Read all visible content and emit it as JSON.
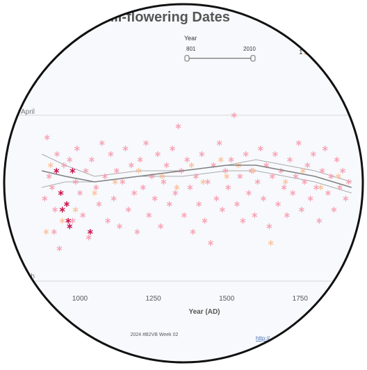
{
  "title": "ull-flowering Dates",
  "year_filter": {
    "label": "Year",
    "min": "801",
    "max": "2010"
  },
  "legend_fragment": "1",
  "footer": {
    "credit": "2024 #B2VB Week 02",
    "link_fragment": "http://"
  },
  "colors": {
    "background": "#f7f9fc",
    "pink": "#f7a3b5",
    "peach": "#f9c3a0",
    "crimson": "#c8104a",
    "trend": "#808080",
    "ci": "#aaaaaa",
    "gridline": "#d8d8d8"
  },
  "chart_data": {
    "type": "scatter",
    "xlabel": "Year (AD)",
    "ylabel": "",
    "xlim": [
      870,
      1925
    ],
    "x_ticks": [
      1000,
      1250,
      1500,
      1750
    ],
    "y_axis": {
      "type": "date",
      "range": [
        "Mar 28",
        "Apr 29"
      ],
      "labels": [
        "April",
        "rch"
      ],
      "label_dates": [
        "Apr 1",
        "Mar 31"
      ]
    },
    "marker": "asterisk",
    "series": [
      {
        "color_key": "pink",
        "points": [
          [
            880,
            "Apr 16"
          ],
          [
            888,
            "Apr 5"
          ],
          [
            895,
            "Apr 12"
          ],
          [
            905,
            "Apr 14"
          ],
          [
            912,
            "Apr 22"
          ],
          [
            915,
            "Apr 18"
          ],
          [
            922,
            "Apr 8"
          ],
          [
            930,
            "Apr 25"
          ],
          [
            945,
            "Apr 10"
          ],
          [
            955,
            "Apr 17"
          ],
          [
            965,
            "Apr 9"
          ],
          [
            975,
            "Apr 20"
          ],
          [
            985,
            "Apr 13"
          ],
          [
            990,
            "Apr 7"
          ],
          [
            1000,
            "Apr 15"
          ],
          [
            1010,
            "Apr 19"
          ],
          [
            1020,
            "Apr 11"
          ],
          [
            1030,
            "Apr 23"
          ],
          [
            1040,
            "Apr 9"
          ],
          [
            1055,
            "Apr 14"
          ],
          [
            1065,
            "Apr 17"
          ],
          [
            1075,
            "Apr 6"
          ],
          [
            1085,
            "Apr 12"
          ],
          [
            1095,
            "Apr 20"
          ],
          [
            1105,
            "Apr 8"
          ],
          [
            1115,
            "Apr 16"
          ],
          [
            1125,
            "Apr 11"
          ],
          [
            1135,
            "Apr 21"
          ],
          [
            1145,
            "Apr 13"
          ],
          [
            1155,
            "Apr 7"
          ],
          [
            1165,
            "Apr 18"
          ],
          [
            1175,
            "Apr 10"
          ],
          [
            1185,
            "Apr 15"
          ],
          [
            1195,
            "Apr 22"
          ],
          [
            1205,
            "Apr 9"
          ],
          [
            1215,
            "Apr 14"
          ],
          [
            1225,
            "Apr 6"
          ],
          [
            1235,
            "Apr 19"
          ],
          [
            1245,
            "Apr 12"
          ],
          [
            1255,
            "Apr 16"
          ],
          [
            1265,
            "Apr 8"
          ],
          [
            1275,
            "Apr 21"
          ],
          [
            1285,
            "Apr 13"
          ],
          [
            1295,
            "Apr 10"
          ],
          [
            1305,
            "Apr 17"
          ],
          [
            1315,
            "Apr 7"
          ],
          [
            1325,
            "Apr 15"
          ],
          [
            1335,
            "Apr 3"
          ],
          [
            1345,
            "Apr 11"
          ],
          [
            1355,
            "Apr 19"
          ],
          [
            1365,
            "Apr 9"
          ],
          [
            1375,
            "Apr 14"
          ],
          [
            1385,
            "Apr 22"
          ],
          [
            1395,
            "Apr 12"
          ],
          [
            1405,
            "Apr 17"
          ],
          [
            1415,
            "Apr 8"
          ],
          [
            1425,
            "Apr 20"
          ],
          [
            1435,
            "Apr 13"
          ],
          [
            1445,
            "Apr 24"
          ],
          [
            1455,
            "Apr 10"
          ],
          [
            1465,
            "Apr 16"
          ],
          [
            1475,
            "Apr 6"
          ],
          [
            1485,
            "Apr 18"
          ],
          [
            1495,
            "Apr 11"
          ],
          [
            1505,
            "Apr 14"
          ],
          [
            1515,
            "Apr 9"
          ],
          [
            1525,
            "Apr 1"
          ],
          [
            1535,
            "Apr 17"
          ],
          [
            1545,
            "Apr 12"
          ],
          [
            1555,
            "Apr 20"
          ],
          [
            1565,
            "Apr 8"
          ],
          [
            1575,
            "Apr 15"
          ],
          [
            1585,
            "Apr 11"
          ],
          [
            1595,
            "Apr 19"
          ],
          [
            1605,
            "Apr 13"
          ],
          [
            1615,
            "Apr 7"
          ],
          [
            1625,
            "Apr 16"
          ],
          [
            1635,
            "Apr 10"
          ],
          [
            1645,
            "Apr 21"
          ],
          [
            1655,
            "Apr 12"
          ],
          [
            1665,
            "Apr 8"
          ],
          [
            1675,
            "Apr 17"
          ],
          [
            1685,
            "Apr 11"
          ],
          [
            1695,
            "Apr 14"
          ],
          [
            1705,
            "Apr 19"
          ],
          [
            1715,
            "Apr 9"
          ],
          [
            1725,
            "Apr 15"
          ],
          [
            1735,
            "Apr 12"
          ],
          [
            1745,
            "Apr 6"
          ],
          [
            1755,
            "Apr 18"
          ],
          [
            1765,
            "Apr 13"
          ],
          [
            1775,
            "Apr 10"
          ],
          [
            1785,
            "Apr 16"
          ],
          [
            1795,
            "Apr 8"
          ],
          [
            1805,
            "Apr 14"
          ],
          [
            1815,
            "Apr 20"
          ],
          [
            1825,
            "Apr 11"
          ],
          [
            1835,
            "Apr 7"
          ],
          [
            1845,
            "Apr 15"
          ],
          [
            1855,
            "Apr 12"
          ],
          [
            1865,
            "Apr 18"
          ],
          [
            1875,
            "Apr 9"
          ],
          [
            1885,
            "Apr 14"
          ],
          [
            1895,
            "Apr 11"
          ],
          [
            1905,
            "Apr 16"
          ],
          [
            1915,
            "Apr 13"
          ]
        ]
      },
      {
        "color_key": "peach",
        "points": [
          [
            885,
            "Apr 22"
          ],
          [
            900,
            "Apr 10"
          ],
          [
            940,
            "Apr 20"
          ],
          [
            985,
            "Apr 18"
          ],
          [
            1050,
            "Apr 15"
          ],
          [
            1120,
            "Apr 13"
          ],
          [
            1200,
            "Apr 11"
          ],
          [
            1280,
            "Apr 12"
          ],
          [
            1330,
            "Apr 14"
          ],
          [
            1380,
            "Apr 10"
          ],
          [
            1420,
            "Apr 13"
          ],
          [
            1480,
            "Apr 9"
          ],
          [
            1500,
            "Apr 12"
          ],
          [
            1540,
            "Apr 10"
          ],
          [
            1590,
            "Apr 11"
          ],
          [
            1650,
            "Apr 24"
          ],
          [
            1700,
            "Apr 13"
          ],
          [
            1760,
            "Apr 11"
          ],
          [
            1820,
            "Apr 14"
          ],
          [
            1880,
            "Apr 12"
          ]
        ]
      },
      {
        "color_key": "crimson",
        "points": [
          [
            920,
            "Apr 11"
          ],
          [
            935,
            "Apr 15"
          ],
          [
            940,
            "Apr 18"
          ],
          [
            955,
            "Apr 17"
          ],
          [
            960,
            "Apr 20"
          ],
          [
            965,
            "Apr 21"
          ],
          [
            975,
            "Apr 11"
          ],
          [
            1035,
            "Apr 22"
          ]
        ]
      }
    ],
    "trend": {
      "color_key": "trend",
      "points": [
        [
          870,
          "Apr 11"
        ],
        [
          950,
          "Apr 12"
        ],
        [
          1050,
          "Apr 13"
        ],
        [
          1200,
          "Apr 12"
        ],
        [
          1350,
          "Apr 11"
        ],
        [
          1500,
          "Apr 10"
        ],
        [
          1600,
          "Apr 10"
        ],
        [
          1700,
          "Apr 11"
        ],
        [
          1800,
          "Apr 12"
        ],
        [
          1925,
          "Apr 14"
        ]
      ],
      "upper": [
        [
          870,
          "Apr 8"
        ],
        [
          950,
          "Apr 10"
        ],
        [
          1050,
          "Apr 12"
        ],
        [
          1200,
          "Apr 11"
        ],
        [
          1350,
          "Apr 11"
        ],
        [
          1500,
          "Apr 10"
        ],
        [
          1600,
          "Apr 9"
        ],
        [
          1700,
          "Apr 10"
        ],
        [
          1800,
          "Apr 11"
        ],
        [
          1925,
          "Apr 13"
        ]
      ],
      "lower": [
        [
          870,
          "Apr 14"
        ],
        [
          950,
          "Apr 13"
        ],
        [
          1050,
          "Apr 13"
        ],
        [
          1200,
          "Apr 12"
        ],
        [
          1350,
          "Apr 12"
        ],
        [
          1500,
          "Apr 11"
        ],
        [
          1600,
          "Apr 11"
        ],
        [
          1700,
          "Apr 12"
        ],
        [
          1800,
          "Apr 13"
        ],
        [
          1925,
          "Apr 15"
        ]
      ]
    }
  }
}
